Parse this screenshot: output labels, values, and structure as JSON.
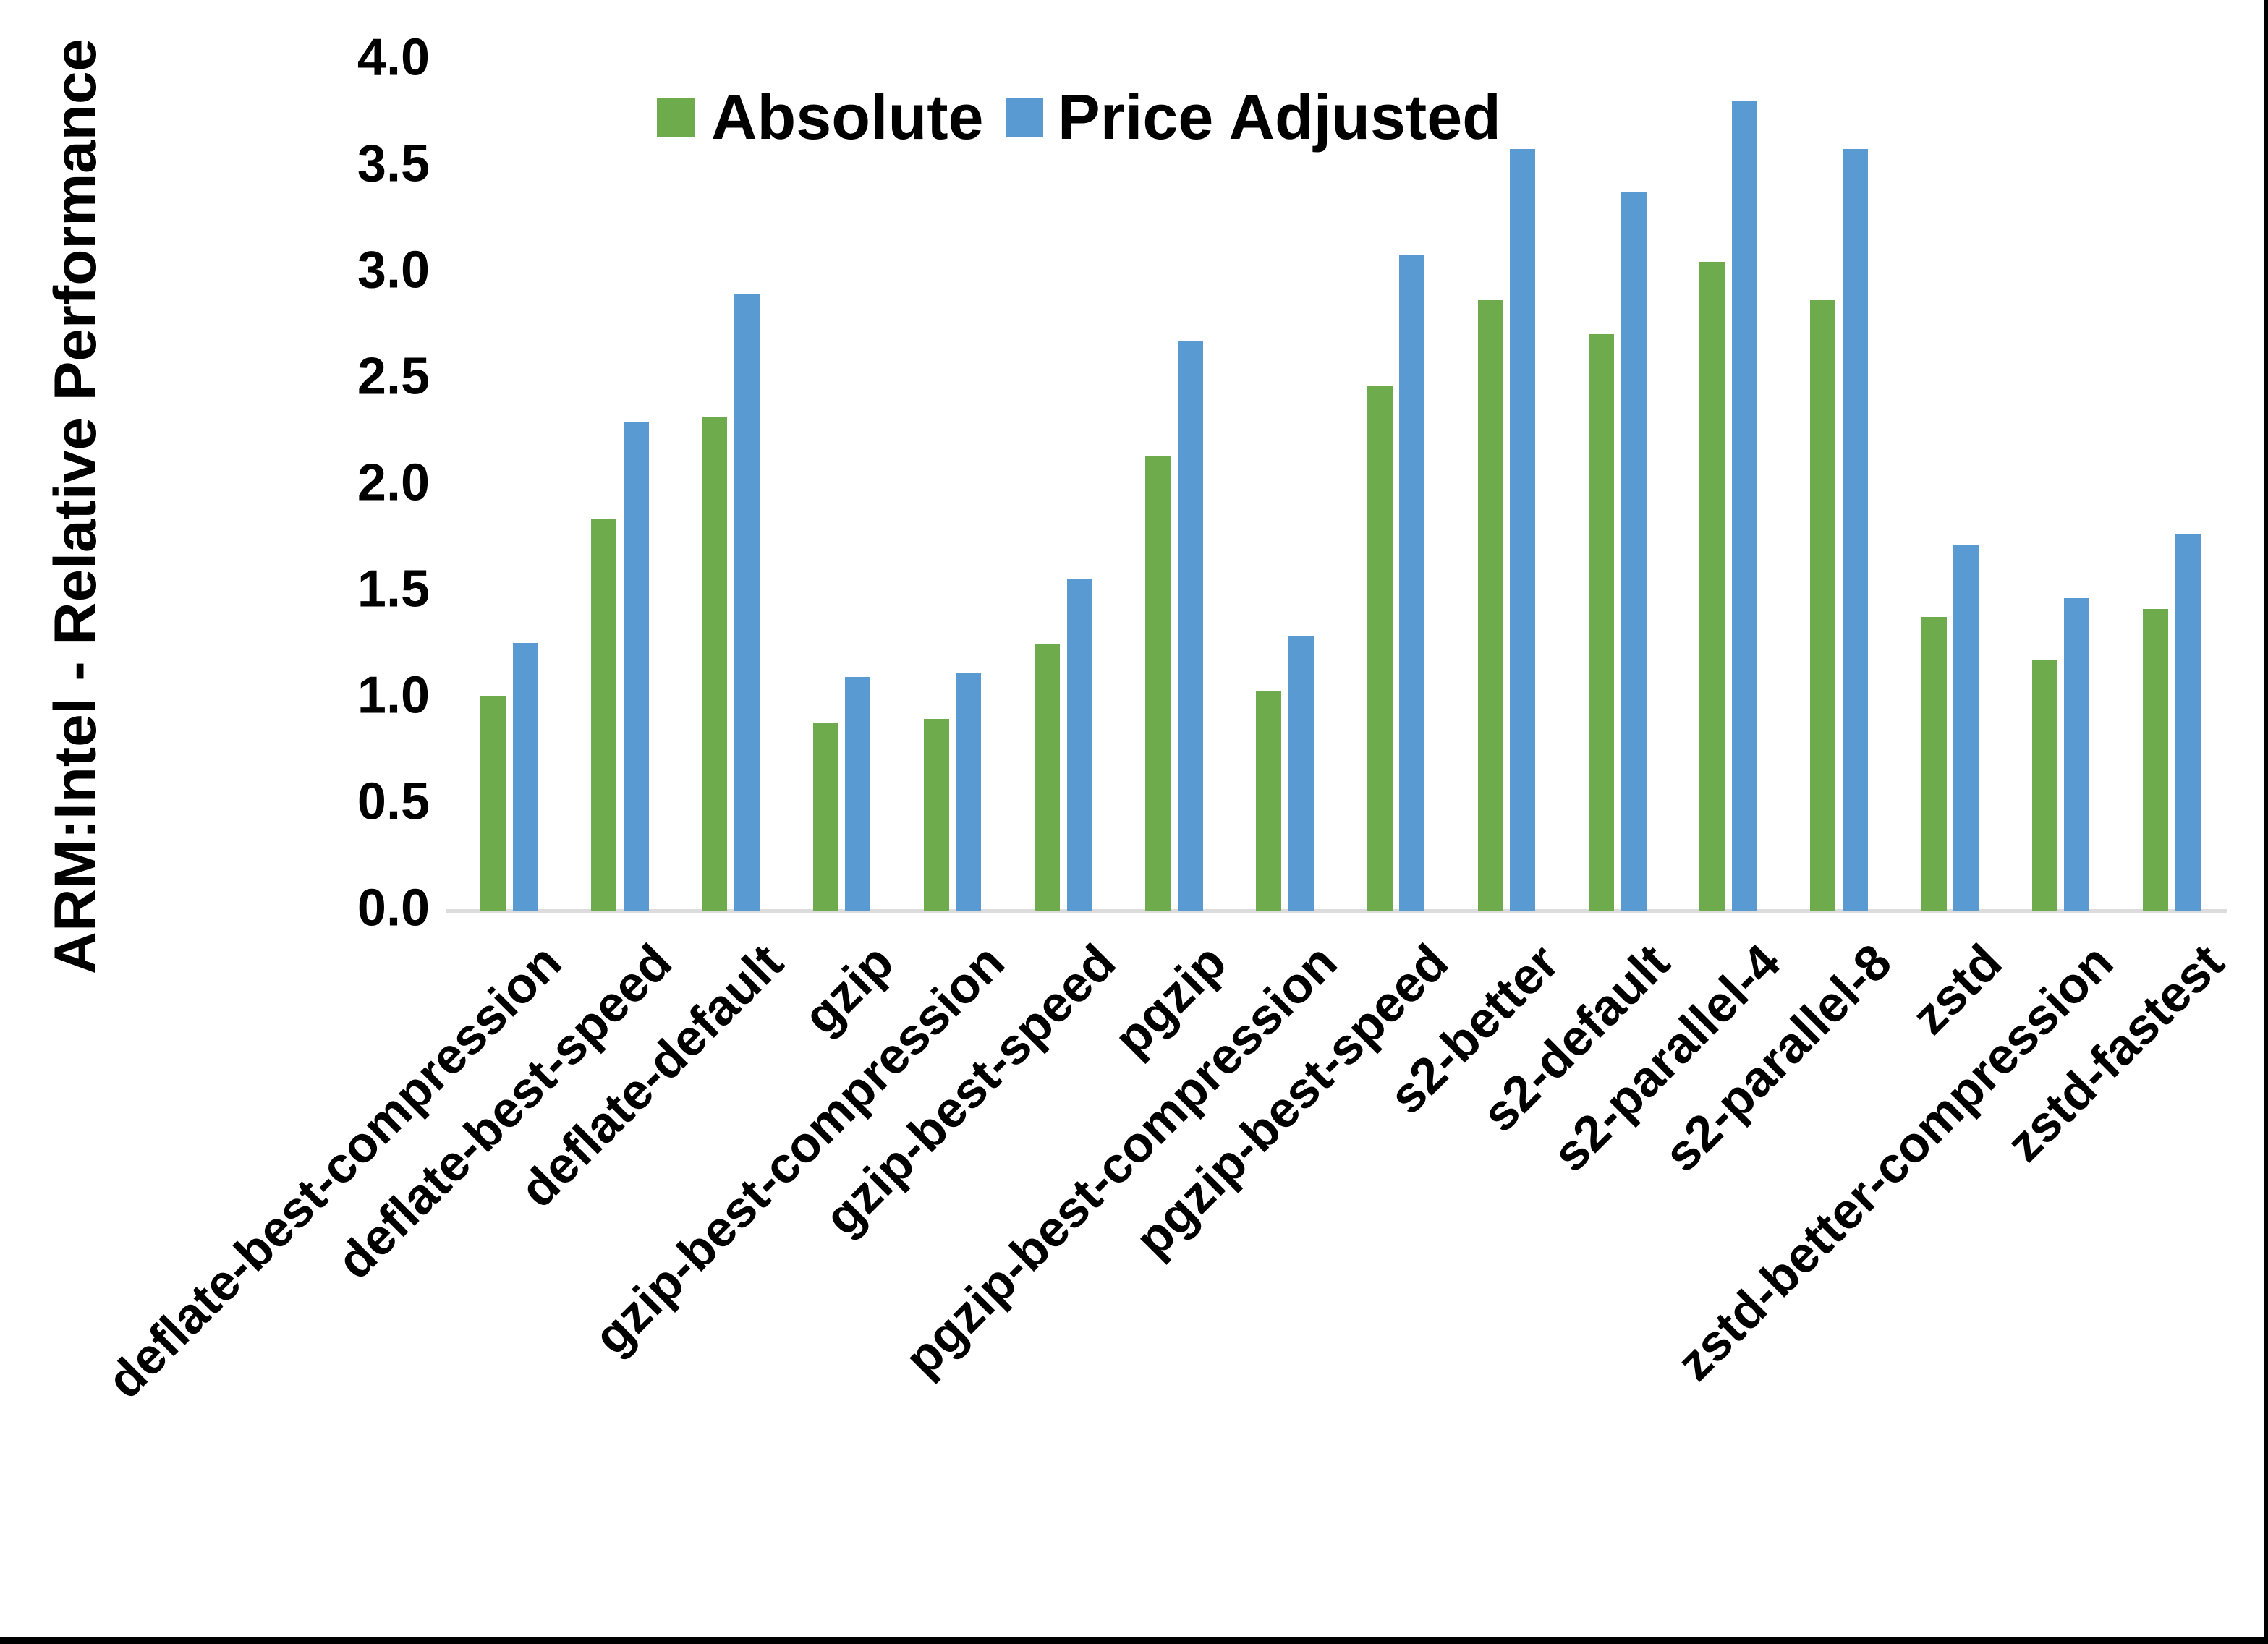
{
  "page": {
    "background": "#ffffff",
    "frame_border_color": "#000000"
  },
  "chart_data": {
    "type": "bar",
    "title": "",
    "xlabel": "",
    "ylabel": "ARM:Intel - Relative Performance",
    "ylim": [
      0,
      4
    ],
    "yticks": [
      "0.0",
      "0.5",
      "1.0",
      "1.5",
      "2.0",
      "2.5",
      "3.0",
      "3.5",
      "4.0"
    ],
    "grid": false,
    "legend_position": "top-center",
    "axis_line_color": "#dcdcdc",
    "categories": [
      "deflate-best-compression",
      "deflate-best-speed",
      "deflate-default",
      "gzip",
      "gzip-best-compression",
      "gzip-best-speed",
      "pgzip",
      "pgzip-best-compression",
      "pgzip-best-speed",
      "s2-better",
      "s2-default",
      "s2-parallel-4",
      "s2-parallel-8",
      "zstd",
      "zstd-better-compression",
      "zstd-fastest"
    ],
    "series": [
      {
        "name": "Absolute",
        "color": "#6eab4c",
        "values": [
          1.01,
          1.84,
          2.32,
          0.88,
          0.9,
          1.25,
          2.14,
          1.03,
          2.47,
          2.87,
          2.71,
          3.05,
          2.87,
          1.38,
          1.18,
          1.42
        ]
      },
      {
        "name": "Price Adjusted",
        "color": "#599ad3",
        "values": [
          1.26,
          2.3,
          2.9,
          1.1,
          1.12,
          1.56,
          2.68,
          1.29,
          3.08,
          3.58,
          3.38,
          3.81,
          3.58,
          1.72,
          1.47,
          1.77
        ]
      }
    ]
  }
}
